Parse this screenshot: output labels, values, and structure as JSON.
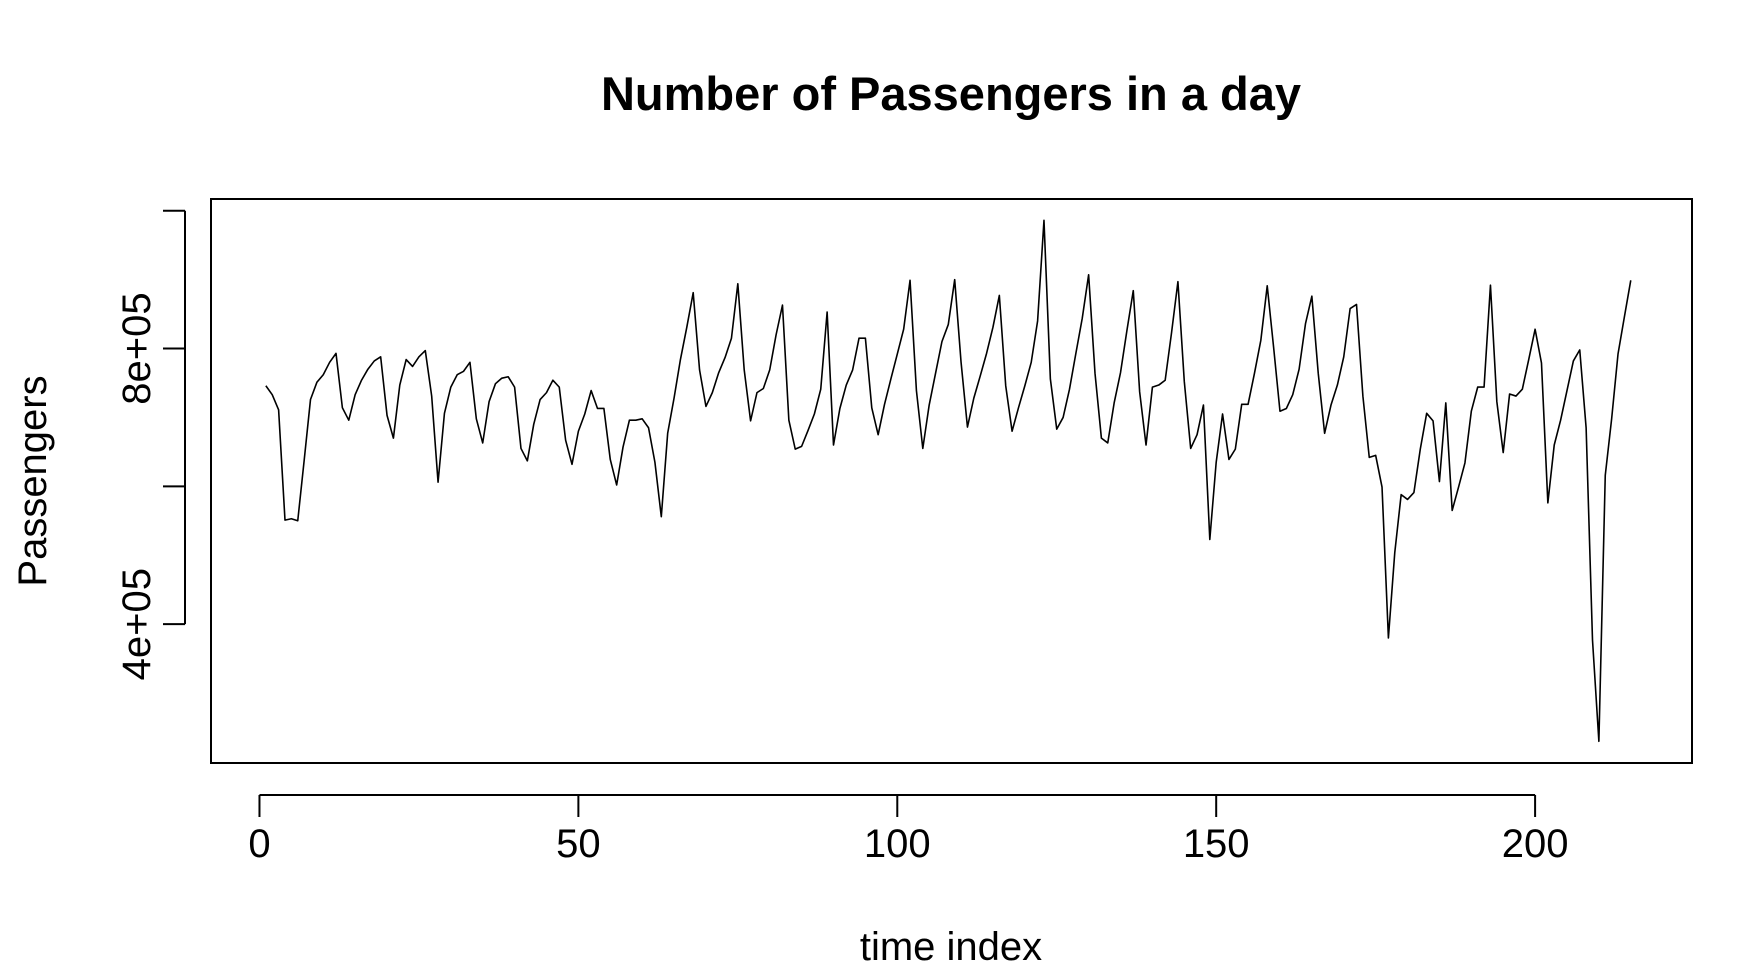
{
  "chart_data": {
    "type": "line",
    "title": "Number of Passengers in a day",
    "x_label": "time index",
    "y_label": "Passengers",
    "color": "#000000",
    "x": [
      1,
      2,
      3,
      4,
      5,
      6,
      7,
      8,
      9,
      10,
      11,
      12,
      13,
      14,
      15,
      16,
      17,
      18,
      19,
      20,
      21,
      22,
      23,
      24,
      25,
      26,
      27,
      28,
      29,
      30,
      31,
      32,
      33,
      34,
      35,
      36,
      37,
      38,
      39,
      40,
      41,
      42,
      43,
      44,
      45,
      46,
      47,
      48,
      49,
      50,
      51,
      52,
      53,
      54,
      55,
      56,
      57,
      58,
      59,
      60,
      61,
      62,
      63,
      64,
      65,
      66,
      67,
      68,
      69,
      70,
      71,
      72,
      73,
      74,
      75,
      76,
      77,
      78,
      79,
      80,
      81,
      82,
      83,
      84,
      85,
      86,
      87,
      88,
      89,
      90,
      91,
      92,
      93,
      94,
      95,
      96,
      97,
      98,
      99,
      100,
      101,
      102,
      103,
      104,
      105,
      106,
      107,
      108,
      109,
      110,
      111,
      112,
      113,
      114,
      115,
      116,
      117,
      118,
      119,
      120,
      121,
      122,
      123,
      124,
      125,
      126,
      127,
      128,
      129,
      130,
      131,
      132,
      133,
      134,
      135,
      136,
      137,
      138,
      139,
      140,
      141,
      142,
      143,
      144,
      145,
      146,
      147,
      148,
      149,
      150,
      151,
      152,
      153,
      154,
      155,
      156,
      157,
      158,
      159,
      160,
      161,
      162,
      163,
      164,
      165,
      166,
      167,
      168,
      169,
      170,
      171,
      172,
      173,
      174,
      175,
      176,
      177,
      178,
      179,
      180,
      181,
      182,
      183,
      184,
      185,
      186,
      187,
      188,
      189,
      190,
      191,
      192,
      193,
      194,
      195,
      196,
      197,
      198,
      199,
      200,
      201,
      202,
      203,
      204,
      205,
      206,
      207,
      208,
      209,
      210,
      211,
      212,
      213,
      214,
      215
    ],
    "values": [
      746000,
      733000,
      711000,
      551000,
      553000,
      550000,
      637000,
      726000,
      751000,
      762000,
      780000,
      793000,
      714000,
      696000,
      733000,
      754000,
      770000,
      782000,
      788000,
      703000,
      670000,
      747000,
      784000,
      774000,
      788000,
      797000,
      731000,
      606000,
      706000,
      744000,
      762000,
      767000,
      780000,
      698000,
      663000,
      723000,
      749000,
      757000,
      759000,
      744000,
      655000,
      637000,
      690000,
      726000,
      736000,
      754000,
      744000,
      667000,
      632000,
      680000,
      705000,
      739000,
      713000,
      713000,
      639000,
      602000,
      657000,
      696000,
      696000,
      698000,
      685000,
      635000,
      556000,
      677000,
      728000,
      784000,
      831000,
      881000,
      769000,
      716000,
      736000,
      765000,
      787000,
      815000,
      894000,
      769000,
      695000,
      736000,
      742000,
      769000,
      820000,
      863000,
      696000,
      654000,
      658000,
      681000,
      705000,
      741000,
      853000,
      660000,
      713000,
      747000,
      769000,
      815000,
      815000,
      714000,
      675000,
      719000,
      756000,
      792000,
      828000,
      899000,
      739000,
      655000,
      718000,
      764000,
      810000,
      835000,
      900000,
      780000,
      686000,
      728000,
      760000,
      793000,
      831000,
      877000,
      746000,
      680000,
      714000,
      746000,
      780000,
      840000,
      986000,
      756000,
      683000,
      700000,
      741000,
      793000,
      844000,
      907000,
      764000,
      670000,
      663000,
      721000,
      765000,
      826000,
      884000,
      737000,
      660000,
      744000,
      747000,
      754000,
      823000,
      897000,
      752000,
      655000,
      675000,
      718000,
      523000,
      635000,
      705000,
      639000,
      654000,
      719000,
      719000,
      764000,
      812000,
      891000,
      802000,
      709000,
      713000,
      733000,
      770000,
      836000,
      876000,
      764000,
      677000,
      718000,
      747000,
      788000,
      858000,
      864000,
      731000,
      642000,
      645000,
      599000,
      380000,
      504000,
      588000,
      581000,
      591000,
      654000,
      706000,
      695000,
      607000,
      721000,
      565000,
      599000,
      634000,
      709000,
      744000,
      744000,
      892000,
      723000,
      649000,
      734000,
      731000,
      741000,
      784000,
      828000,
      779000,
      576000,
      660000,
      696000,
      739000,
      782000,
      798000,
      685000,
      377000,
      230000,
      616000,
      698000,
      792000,
      846000,
      899000
    ],
    "xlim": [
      -7.6,
      224.6
    ],
    "xticks": [
      0,
      50,
      100,
      150,
      200
    ],
    "ylim": [
      198500,
      1017000
    ],
    "yticks": [
      {
        "value": 400000,
        "label": "4e+05"
      },
      {
        "value": 600000,
        "label": null
      },
      {
        "value": 800000,
        "label": "8e+05"
      },
      {
        "value": 1000000,
        "label": null
      }
    ]
  }
}
